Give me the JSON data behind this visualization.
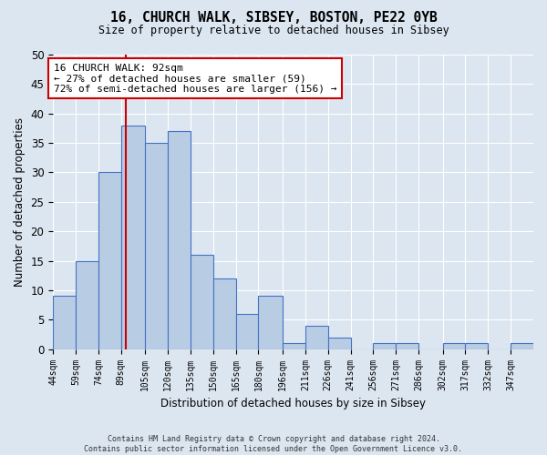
{
  "title_line1": "16, CHURCH WALK, SIBSEY, BOSTON, PE22 0YB",
  "title_line2": "Size of property relative to detached houses in Sibsey",
  "xlabel": "Distribution of detached houses by size in Sibsey",
  "ylabel": "Number of detached properties",
  "footer_line1": "Contains HM Land Registry data © Crown copyright and database right 2024.",
  "footer_line2": "Contains public sector information licensed under the Open Government Licence v3.0.",
  "bar_labels": [
    "44sqm",
    "59sqm",
    "74sqm",
    "89sqm",
    "105sqm",
    "120sqm",
    "135sqm",
    "150sqm",
    "165sqm",
    "180sqm",
    "196sqm",
    "211sqm",
    "226sqm",
    "241sqm",
    "256sqm",
    "271sqm",
    "286sqm",
    "302sqm",
    "317sqm",
    "332sqm",
    "347sqm"
  ],
  "bar_values": [
    9,
    15,
    30,
    38,
    35,
    37,
    16,
    12,
    6,
    9,
    1,
    4,
    2,
    0,
    1,
    1,
    0,
    1,
    1,
    0,
    1
  ],
  "bar_color": "#b8cce4",
  "bar_edge_color": "#4472c4",
  "property_line_x": 92,
  "property_line_color": "#cc0000",
  "annotation_title": "16 CHURCH WALK: 92sqm",
  "annotation_line1": "← 27% of detached houses are smaller (59)",
  "annotation_line2": "72% of semi-detached houses are larger (156) →",
  "annotation_box_color": "#ffffff",
  "annotation_box_edge_color": "#cc0000",
  "ylim": [
    0,
    50
  ],
  "yticks": [
    0,
    5,
    10,
    15,
    20,
    25,
    30,
    35,
    40,
    45,
    50
  ],
  "background_color": "#dce6f1",
  "plot_background_color": "#dce6f1",
  "grid_color": "#ffffff"
}
